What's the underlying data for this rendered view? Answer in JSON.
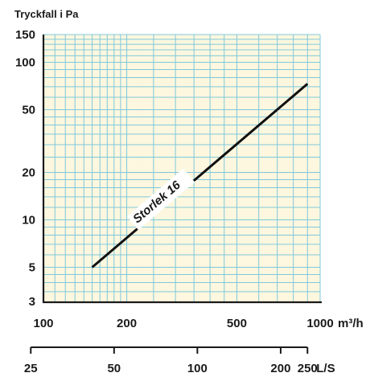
{
  "chart_data": {
    "type": "line",
    "title": "Tryckfall i Pa",
    "ylabel": "Tryckfall i Pa",
    "xlabel": "m³/h",
    "x_scale": "log",
    "y_scale": "log",
    "xlim": [
      100,
      1000
    ],
    "ylim": [
      3,
      150
    ],
    "grid": true,
    "x_ticks": [
      {
        "value": 100,
        "label": "100"
      },
      {
        "value": 200,
        "label": "200"
      },
      {
        "value": 500,
        "label": "500"
      },
      {
        "value": 1000,
        "label": "1000"
      }
    ],
    "x_unit": "m³/h",
    "y_ticks": [
      {
        "value": 150,
        "label": "150"
      },
      {
        "value": 100,
        "label": "100"
      },
      {
        "value": 50,
        "label": "50"
      },
      {
        "value": 20,
        "label": "20"
      },
      {
        "value": 10,
        "label": "10"
      },
      {
        "value": 5,
        "label": "5"
      },
      {
        "value": 3,
        "label": "3"
      }
    ],
    "secondary_x_axis": {
      "unit": "L/S",
      "ticks": [
        {
          "value": 25,
          "label": "25"
        },
        {
          "value": 50,
          "label": "50"
        },
        {
          "value": 100,
          "label": "100"
        },
        {
          "value": 200,
          "label": "200"
        },
        {
          "value": 250,
          "label": "250"
        }
      ]
    },
    "series": [
      {
        "name": "Storlek 16",
        "x": [
          150,
          900
        ],
        "y": [
          5,
          73
        ]
      }
    ],
    "colors": {
      "plot_background": "#fdf7df",
      "grid": "#7ec8dc",
      "axis": "#1a1a1a",
      "series": "#111111"
    }
  }
}
